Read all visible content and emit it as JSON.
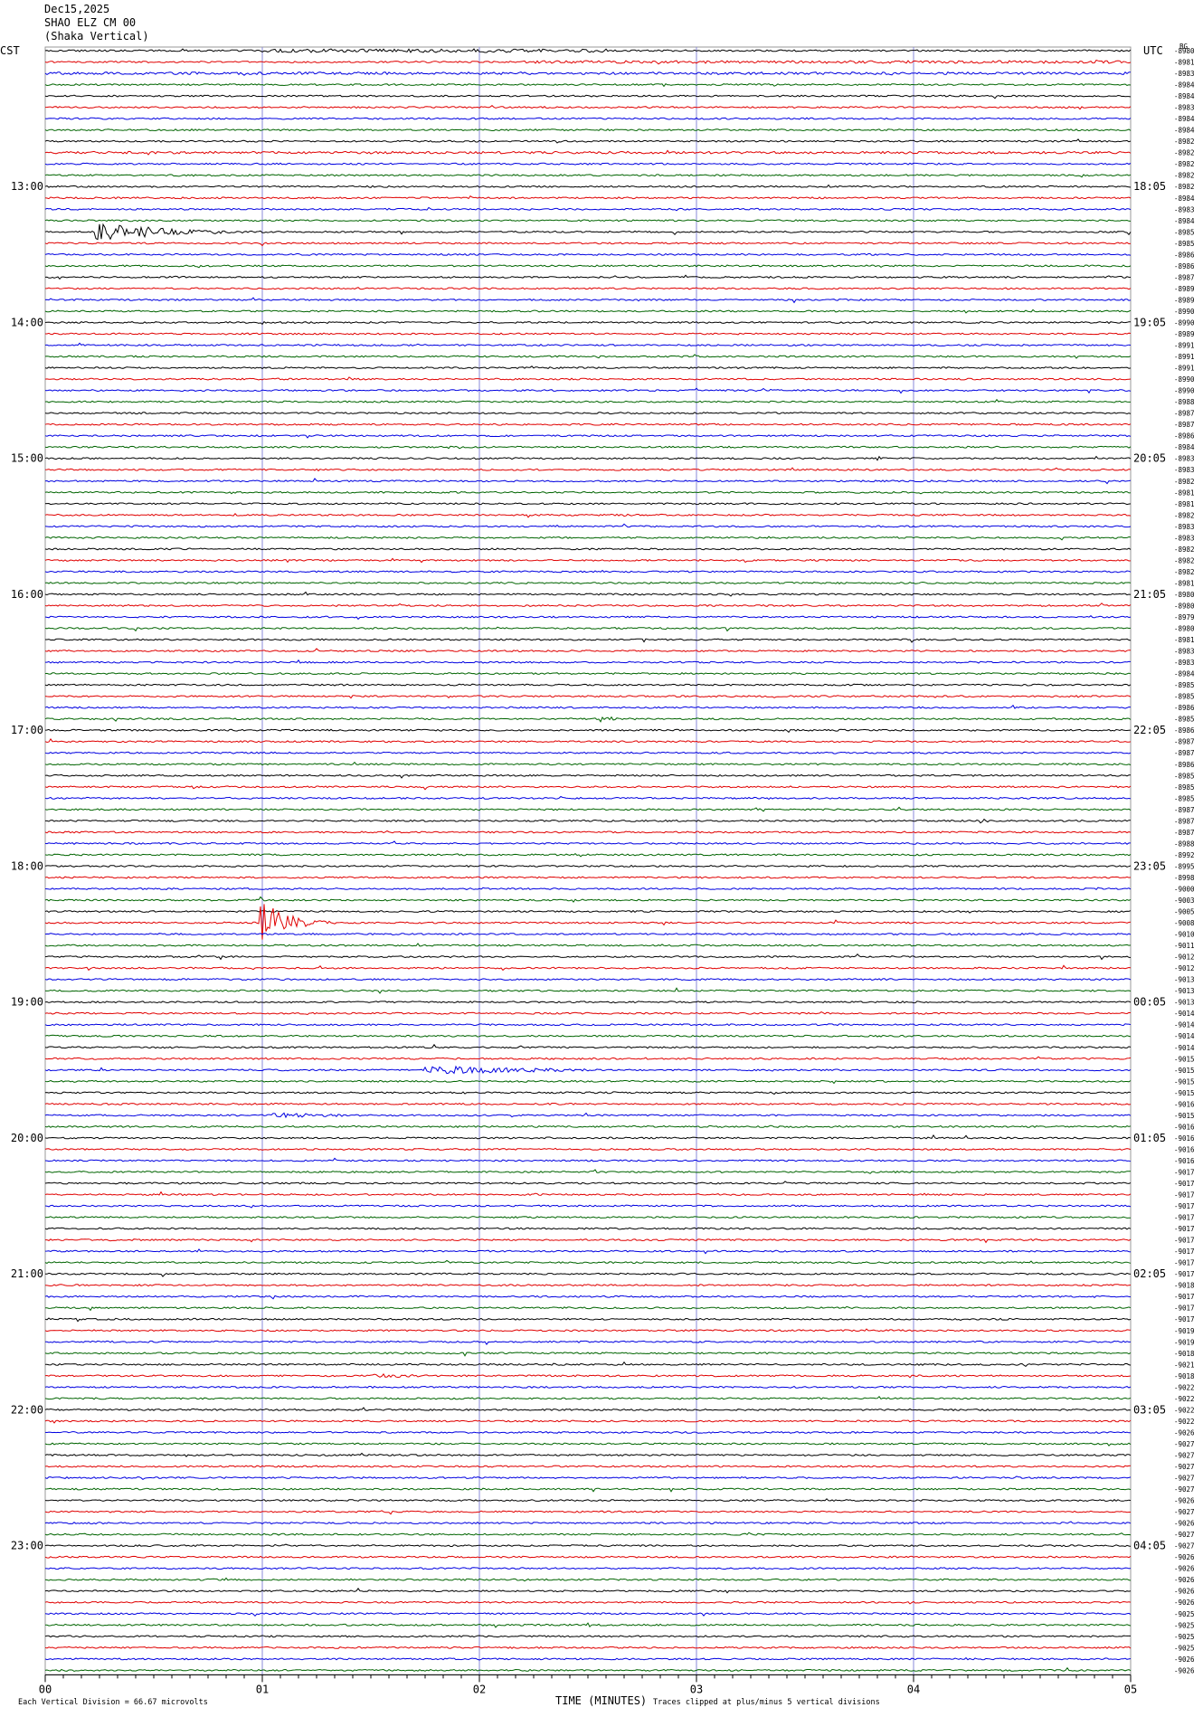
{
  "header": {
    "date": "Dec15,2025",
    "station": "SHAO ELZ CM 00",
    "component": "(Shaka Vertical)",
    "bg": "BG"
  },
  "left_axis": {
    "title": "CST",
    "labels": [
      "13:00",
      "14:00",
      "15:00",
      "16:00",
      "17:00",
      "18:00",
      "19:00",
      "20:00",
      "21:00",
      "22:00",
      "23:00"
    ]
  },
  "right_axis": {
    "title": "UTC",
    "labels": [
      "18:05",
      "19:05",
      "20:05",
      "21:05",
      "22:05",
      "23:05",
      "00:05",
      "01:05",
      "02:05",
      "03:05",
      "04:05"
    ]
  },
  "trace_labels": [
    "-8980",
    "-8981",
    "-8983",
    "-8984",
    "-8984",
    "-8983",
    "-8984",
    "-8984",
    "-8982",
    "-8982",
    "-8982",
    "-8982",
    "-8982",
    "-8984",
    "-8983",
    "-8984",
    "-8985",
    "-8985",
    "-8986",
    "-8986",
    "-8987",
    "-8989",
    "-8989",
    "-8990",
    "-8990",
    "-8989",
    "-8991",
    "-8991",
    "-8991",
    "-8990",
    "-8990",
    "-8988",
    "-8987",
    "-8987",
    "-8986",
    "-8984",
    "-8983",
    "-8983",
    "-8982",
    "-8981",
    "-8981",
    "-8982",
    "-8983",
    "-8983",
    "-8982",
    "-8982",
    "-8982",
    "-8981",
    "-8980",
    "-8980",
    "-8979",
    "-8980",
    "-8981",
    "-8983",
    "-8983",
    "-8984",
    "-8985",
    "-8985",
    "-8986",
    "-8985",
    "-8986",
    "-8987",
    "-8987",
    "-8986",
    "-8985",
    "-8985",
    "-8985",
    "-8987",
    "-8987",
    "-8987",
    "-8988",
    "-8992",
    "-8995",
    "-8998",
    "-9000",
    "-9003",
    "-9005",
    "-9008",
    "-9010",
    "-9011",
    "-9012",
    "-9012",
    "-9013",
    "-9013",
    "-9013",
    "-9014",
    "-9014",
    "-9014",
    "-9014",
    "-9015",
    "-9015",
    "-9015",
    "-9015",
    "-9016",
    "-9015",
    "-9016",
    "-9016",
    "-9016",
    "-9016",
    "-9017",
    "-9017",
    "-9017",
    "-9017",
    "-9017",
    "-9017",
    "-9017",
    "-9017",
    "-9017",
    "-9017",
    "-9018",
    "-9017",
    "-9017",
    "-9017",
    "-9019",
    "-9019",
    "-9018",
    "-9021",
    "-9018",
    "-9022",
    "-9022",
    "-9022",
    "-9022",
    "-9026",
    "-9027",
    "-9027",
    "-9027",
    "-9027",
    "-9027",
    "-9026",
    "-9027",
    "-9026",
    "-9027",
    "-9027",
    "-9026",
    "-9026",
    "-9026",
    "-9026",
    "-9026",
    "-9025",
    "-9025",
    "-9025",
    "-9025",
    "-9026",
    "-9026"
  ],
  "x_axis": {
    "ticks": [
      "00",
      "01",
      "02",
      "03",
      "04",
      "05"
    ],
    "title": "TIME (MINUTES)"
  },
  "footer": {
    "scale_note": "Each Vertical Division = 66.67 microvolts",
    "clip_note": "Traces clipped at plus/minus 5 vertical divisions"
  }
}
